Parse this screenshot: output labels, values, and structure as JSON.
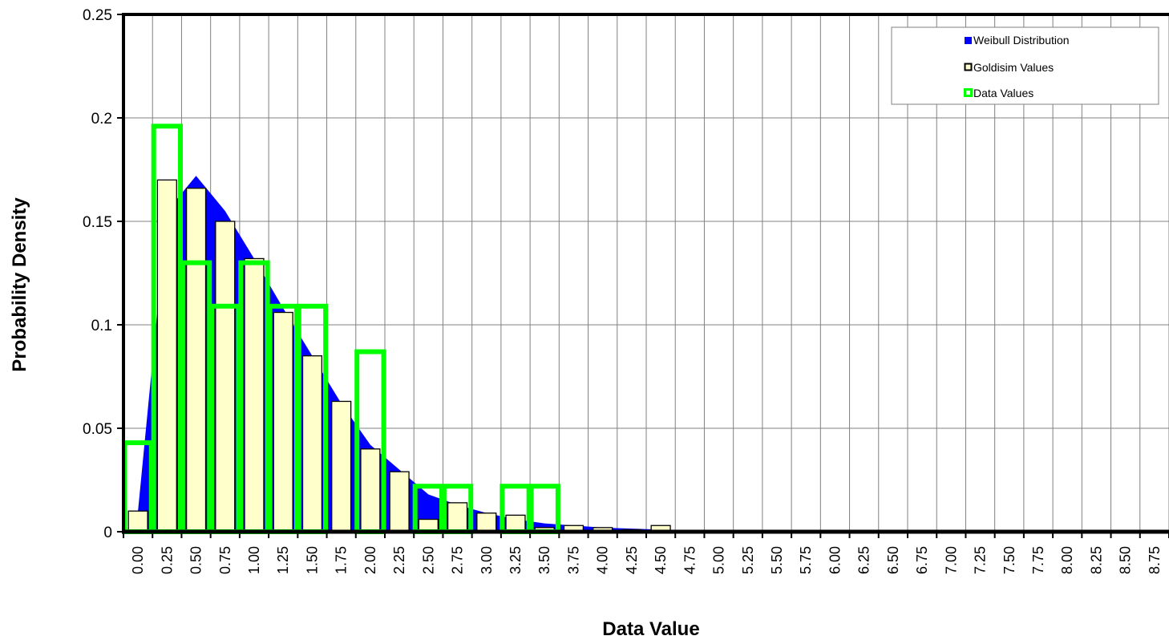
{
  "chart_data": {
    "type": "bar",
    "xlabel": "Data Value",
    "ylabel": "Probability Density",
    "ylim": [
      0,
      0.25
    ],
    "y_ticks": [
      "0",
      "0.05",
      "0.1",
      "0.15",
      "0.2",
      "0.25"
    ],
    "categories": [
      "0.00",
      "0.25",
      "0.50",
      "0.75",
      "1.00",
      "1.25",
      "1.50",
      "1.75",
      "2.00",
      "2.25",
      "2.50",
      "2.75",
      "3.00",
      "3.25",
      "3.50",
      "3.75",
      "4.00",
      "4.25",
      "4.50",
      "4.75",
      "5.00",
      "5.25",
      "5.50",
      "5.75",
      "6.00",
      "6.25",
      "6.50",
      "6.75",
      "7.00",
      "7.25",
      "7.50",
      "7.75",
      "8.00",
      "8.25",
      "8.50",
      "8.75"
    ],
    "grid": true,
    "legend_position": "top-right",
    "series": [
      {
        "name": "Weibull Distribution",
        "kind": "area",
        "color": "#0000FF",
        "values": [
          0.01,
          0.155,
          0.172,
          0.155,
          0.132,
          0.108,
          0.085,
          0.062,
          0.042,
          0.03,
          0.018,
          0.013,
          0.009,
          0.006,
          0.004,
          0.003,
          0.002,
          0.0015,
          0.001,
          0.0007,
          0.0005,
          0.0003,
          0.0002,
          0.0001,
          0,
          0,
          0,
          0,
          0,
          0,
          0,
          0,
          0,
          0,
          0,
          0
        ]
      },
      {
        "name": "Goldisim Values",
        "kind": "bar",
        "color": "#FFFFCC",
        "stroke": "#000000",
        "values": [
          0.01,
          0.17,
          0.166,
          0.15,
          0.132,
          0.106,
          0.085,
          0.063,
          0.04,
          0.029,
          0.006,
          0.014,
          0.009,
          0.008,
          0.002,
          0.003,
          0.002,
          0.001,
          0.003,
          0,
          0,
          0,
          0,
          0,
          0,
          0,
          0,
          0,
          0,
          0,
          0,
          0,
          0,
          0,
          0,
          0
        ]
      },
      {
        "name": "Data Values",
        "kind": "outline-bar",
        "color": "#00FF00",
        "values": [
          0.043,
          0.196,
          0.13,
          0.109,
          0.13,
          0.109,
          0.109,
          0,
          0.087,
          0,
          0.022,
          0.022,
          0,
          0.022,
          0.022,
          0,
          0,
          0,
          0,
          0,
          0,
          0,
          0,
          0,
          0,
          0,
          0,
          0,
          0,
          0,
          0,
          0,
          0,
          0,
          0,
          0
        ]
      }
    ]
  }
}
